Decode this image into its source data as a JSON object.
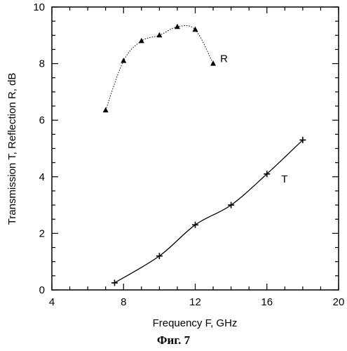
{
  "chart_data": {
    "type": "line",
    "xlabel": "Frequency  F,  GHz",
    "ylabel": "Transmission  T,  Reflection  R,  dB",
    "xlim": [
      4,
      20
    ],
    "ylim": [
      0,
      10
    ],
    "xticks": [
      4,
      8,
      12,
      16,
      20
    ],
    "yticks": [
      0,
      2,
      4,
      6,
      8,
      10
    ],
    "grid": false,
    "series": [
      {
        "name": "R",
        "marker": "triangle",
        "line_style": "dotted",
        "x": [
          7,
          8,
          9,
          10,
          11,
          12,
          13
        ],
        "y": [
          6.35,
          8.1,
          8.8,
          9.0,
          9.3,
          9.2,
          8.0
        ]
      },
      {
        "name": "T",
        "marker": "plus",
        "line_style": "solid",
        "x": [
          7.5,
          10,
          12,
          14,
          16,
          18
        ],
        "y": [
          0.25,
          1.2,
          2.3,
          3.0,
          4.1,
          5.3
        ]
      }
    ]
  },
  "caption": "Фиг. 7",
  "colors": {
    "line": "#000000",
    "background": "#ffffff"
  }
}
